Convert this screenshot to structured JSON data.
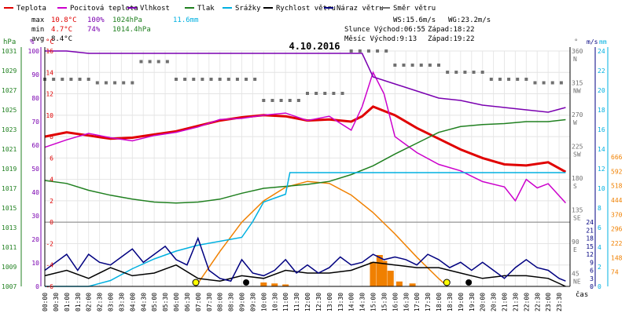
{
  "title": "4.10.2016",
  "legend": [
    {
      "label": "Teplota",
      "color": "#e00000"
    },
    {
      "label": "Pocitová teplota",
      "color": "#cc00cc"
    },
    {
      "label": "Vlhkost",
      "color": "#7a00b0"
    },
    {
      "label": "Tlak",
      "color": "#208020"
    },
    {
      "label": "Srážky",
      "color": "#00b0e0"
    },
    {
      "label": "Rychlost větru",
      "color": "#000000"
    },
    {
      "label": "Náraz větru",
      "color": "#000080"
    },
    {
      "label": "Směr větru",
      "color": "#707070"
    }
  ],
  "stats": {
    "max": {
      "label": "max",
      "temp": "10.8°C",
      "hum": "100%",
      "press": "1024hPa",
      "rain": "11.6mm"
    },
    "min": {
      "label": "min",
      "temp": "4.7°C",
      "hum": "74%",
      "press": "1014.4hPa"
    },
    "avg": {
      "label": "avg",
      "temp": "8.4°C"
    }
  },
  "info": {
    "ws": "WS:15.6m/s",
    "wg": "WG:23.2m/s",
    "sun_rise": "Slunce Východ:06:55",
    "sun_set": "Západ:18:22",
    "moon_rise": "Měsíc Východ:9:13",
    "moon_set": "Západ:19:22"
  },
  "axes": {
    "hpa_label": "hPa",
    "pct_label": "%",
    "temp_label": "°C",
    "deg_label": "°",
    "ms_label": "m/s",
    "mm_label": "mm",
    "x_label": "čas",
    "hpa_ticks": [
      "1031",
      "1029",
      "1027",
      "1025",
      "1023",
      "1021",
      "1019",
      "1017",
      "1015",
      "1013",
      "1011",
      "1009",
      "1007"
    ],
    "pct_ticks": [
      "100",
      "90",
      "80",
      "70",
      "60",
      "50",
      "40",
      "30",
      "20",
      "10",
      "0"
    ],
    "temp_ticks": [
      "16",
      "14",
      "12",
      "10",
      "8",
      "6",
      "4",
      "2",
      "0",
      "-2",
      "-4",
      "-6"
    ],
    "dir_ticks": [
      {
        "deg": "360",
        "dir": "N"
      },
      {
        "deg": "315",
        "dir": "NW"
      },
      {
        "deg": "270",
        "dir": "W"
      },
      {
        "deg": "225",
        "dir": "SW"
      },
      {
        "deg": "180",
        "dir": "S"
      },
      {
        "deg": "135",
        "dir": "SE"
      },
      {
        "deg": "90",
        "dir": "E"
      },
      {
        "deg": "45",
        "dir": "NE"
      }
    ],
    "ms_ticks": [
      "24",
      "21",
      "18",
      "15",
      "12",
      "9",
      "6",
      "3",
      "0"
    ],
    "ms_ticks_right": [
      "24",
      "22",
      "20",
      "18",
      "16",
      "14",
      "12",
      "10",
      "8",
      "6",
      "4",
      "2",
      "0"
    ],
    "mm_ticks": [
      "24",
      "22",
      "20",
      "18",
      "16",
      "14",
      "12",
      "10",
      "8",
      "6",
      "4",
      "2",
      "0"
    ],
    "solar_ticks": [
      "666",
      "592",
      "518",
      "444",
      "370",
      "296",
      "222",
      "148",
      "74"
    ],
    "time_ticks": [
      "00:00",
      "00:30",
      "01:00",
      "01:30",
      "02:00",
      "02:30",
      "03:00",
      "03:30",
      "04:00",
      "04:30",
      "05:00",
      "05:30",
      "06:00",
      "06:30",
      "07:00",
      "07:30",
      "08:00",
      "08:30",
      "09:00",
      "09:30",
      "10:00",
      "10:30",
      "11:00",
      "11:30",
      "12:00",
      "12:30",
      "13:00",
      "13:30",
      "14:00",
      "14:30",
      "15:00",
      "15:30",
      "16:00",
      "16:30",
      "17:00",
      "17:30",
      "18:00",
      "18:30",
      "19:00",
      "19:30",
      "20:00",
      "20:30",
      "21:00",
      "21:30",
      "22:00",
      "22:30",
      "23:00",
      "23:30"
    ]
  },
  "chart_data": {
    "type": "line",
    "title": "4.10.2016",
    "x_unit": "hours",
    "series": [
      {
        "name": "Teplota",
        "unit": "°C",
        "color": "#e00000",
        "x": [
          0,
          1,
          2,
          3,
          4,
          5,
          6,
          7,
          8,
          9,
          10,
          11,
          12,
          13,
          14,
          14.5,
          15,
          15.5,
          16,
          17,
          18,
          19,
          20,
          21,
          22,
          23,
          23.8
        ],
        "y": [
          8.0,
          8.4,
          8.1,
          7.8,
          7.9,
          8.2,
          8.5,
          9.0,
          9.5,
          9.8,
          10.0,
          9.9,
          9.5,
          9.6,
          9.4,
          9.9,
          10.8,
          10.4,
          10.0,
          8.8,
          7.8,
          6.8,
          6.0,
          5.4,
          5.3,
          5.6,
          4.7
        ]
      },
      {
        "name": "Pocitová teplota",
        "unit": "°C",
        "color": "#cc00cc",
        "x": [
          0,
          1,
          2,
          3,
          4,
          5,
          6,
          7,
          8,
          9,
          10,
          11,
          12,
          13,
          14,
          14.5,
          15,
          15.5,
          16,
          17,
          18,
          19,
          20,
          21,
          21.5,
          22,
          22.5,
          23,
          23.8
        ],
        "y": [
          7.0,
          7.7,
          8.3,
          7.9,
          7.6,
          8.1,
          8.4,
          8.9,
          9.6,
          9.7,
          10.0,
          10.2,
          9.5,
          9.9,
          8.6,
          10.8,
          14.0,
          12.0,
          8.0,
          6.5,
          5.4,
          4.8,
          3.8,
          3.3,
          2.0,
          4.0,
          3.2,
          3.6,
          1.8
        ]
      },
      {
        "name": "Vlhkost",
        "unit": "%",
        "color": "#7a00b0",
        "x": [
          0,
          1,
          2,
          14.5,
          15,
          16,
          17,
          18,
          19,
          20,
          21,
          22,
          23,
          23.8
        ],
        "y": [
          100,
          100,
          99,
          99,
          89,
          86,
          83,
          80,
          79,
          77,
          76,
          75,
          74,
          76
        ]
      },
      {
        "name": "Tlak",
        "unit": "hPa",
        "color": "#208020",
        "x": [
          0,
          1,
          2,
          3,
          4,
          5,
          6,
          7,
          8,
          9,
          10,
          11,
          12,
          13,
          14,
          15,
          16,
          17,
          18,
          19,
          20,
          21,
          22,
          23,
          23.8
        ],
        "y": [
          1017.8,
          1017.5,
          1016.8,
          1016.3,
          1015.9,
          1015.6,
          1015.5,
          1015.6,
          1015.9,
          1016.5,
          1017.0,
          1017.2,
          1017.4,
          1017.7,
          1018.4,
          1019.3,
          1020.5,
          1021.6,
          1022.7,
          1023.3,
          1023.5,
          1023.6,
          1023.8,
          1023.8,
          1024.0
        ]
      },
      {
        "name": "Srážky",
        "unit": "mm",
        "color": "#00b0e0",
        "x": [
          0,
          2,
          3,
          4,
          5,
          6,
          7,
          8,
          9,
          9.5,
          10,
          11,
          11.2,
          12,
          23.8
        ],
        "y": [
          0,
          0,
          0.6,
          1.8,
          2.8,
          3.6,
          4.2,
          4.6,
          5.0,
          6.6,
          8.6,
          9.4,
          11.6,
          11.6,
          11.6
        ]
      },
      {
        "name": "Rychlost větru",
        "unit": "m/s",
        "color": "#000000",
        "x": [
          0,
          1,
          2,
          3,
          4,
          5,
          6,
          7,
          8,
          9,
          10,
          11,
          12,
          13,
          14,
          15,
          16,
          17,
          18,
          19,
          20,
          21,
          22,
          23,
          23.8
        ],
        "y": [
          4,
          6,
          3,
          7,
          4,
          5,
          8,
          3,
          2,
          4,
          3,
          6,
          5,
          5,
          6,
          9,
          8,
          7,
          7,
          5,
          3,
          4,
          4,
          3,
          0
        ]
      },
      {
        "name": "Náraz větru",
        "unit": "m/s",
        "color": "#000080",
        "x": [
          0,
          0.5,
          1,
          1.5,
          2,
          2.5,
          3,
          3.5,
          4,
          4.5,
          5,
          5.5,
          6,
          6.5,
          7,
          7.5,
          8,
          8.5,
          9,
          9.5,
          10,
          10.5,
          11,
          11.5,
          12,
          12.5,
          13,
          13.5,
          14,
          14.5,
          15,
          15.5,
          16,
          16.5,
          17,
          17.5,
          18,
          18.5,
          19,
          19.5,
          20,
          20.5,
          21,
          21.5,
          22,
          22.5,
          23,
          23.5,
          23.8
        ],
        "y": [
          6,
          9,
          12,
          6,
          12,
          9,
          8,
          11,
          14,
          9,
          12,
          15,
          10,
          8,
          18,
          6,
          3,
          2,
          10,
          5,
          4,
          6,
          10,
          5,
          8,
          5,
          7,
          11,
          8,
          9,
          12,
          10,
          11,
          10,
          8,
          12,
          10,
          7,
          9,
          6,
          9,
          6,
          3,
          7,
          10,
          7,
          6,
          3,
          2
        ]
      },
      {
        "name": "Směr větru",
        "unit": "°",
        "color": "#707070",
        "x": [
          0,
          2,
          4,
          6,
          8,
          10,
          12,
          14,
          15,
          16,
          18,
          20,
          22,
          23.8
        ],
        "y": [
          320,
          315,
          345,
          320,
          320,
          290,
          300,
          360,
          360,
          340,
          330,
          320,
          315,
          315
        ]
      }
    ],
    "solar_radiation": {
      "unit": "W/m2",
      "color": "#f08000",
      "x": [
        6.9,
        8,
        9,
        10,
        11,
        12,
        13,
        14,
        15,
        16,
        17,
        18,
        18.4
      ],
      "y": [
        0,
        180,
        330,
        440,
        510,
        540,
        530,
        470,
        380,
        270,
        150,
        40,
        0
      ]
    },
    "ylim_temp": [
      -6,
      16
    ],
    "ylim_pressure": [
      1007,
      1031
    ],
    "ylim_humidity": [
      0,
      100
    ],
    "xlim": [
      0,
      24
    ],
    "grid": true
  }
}
